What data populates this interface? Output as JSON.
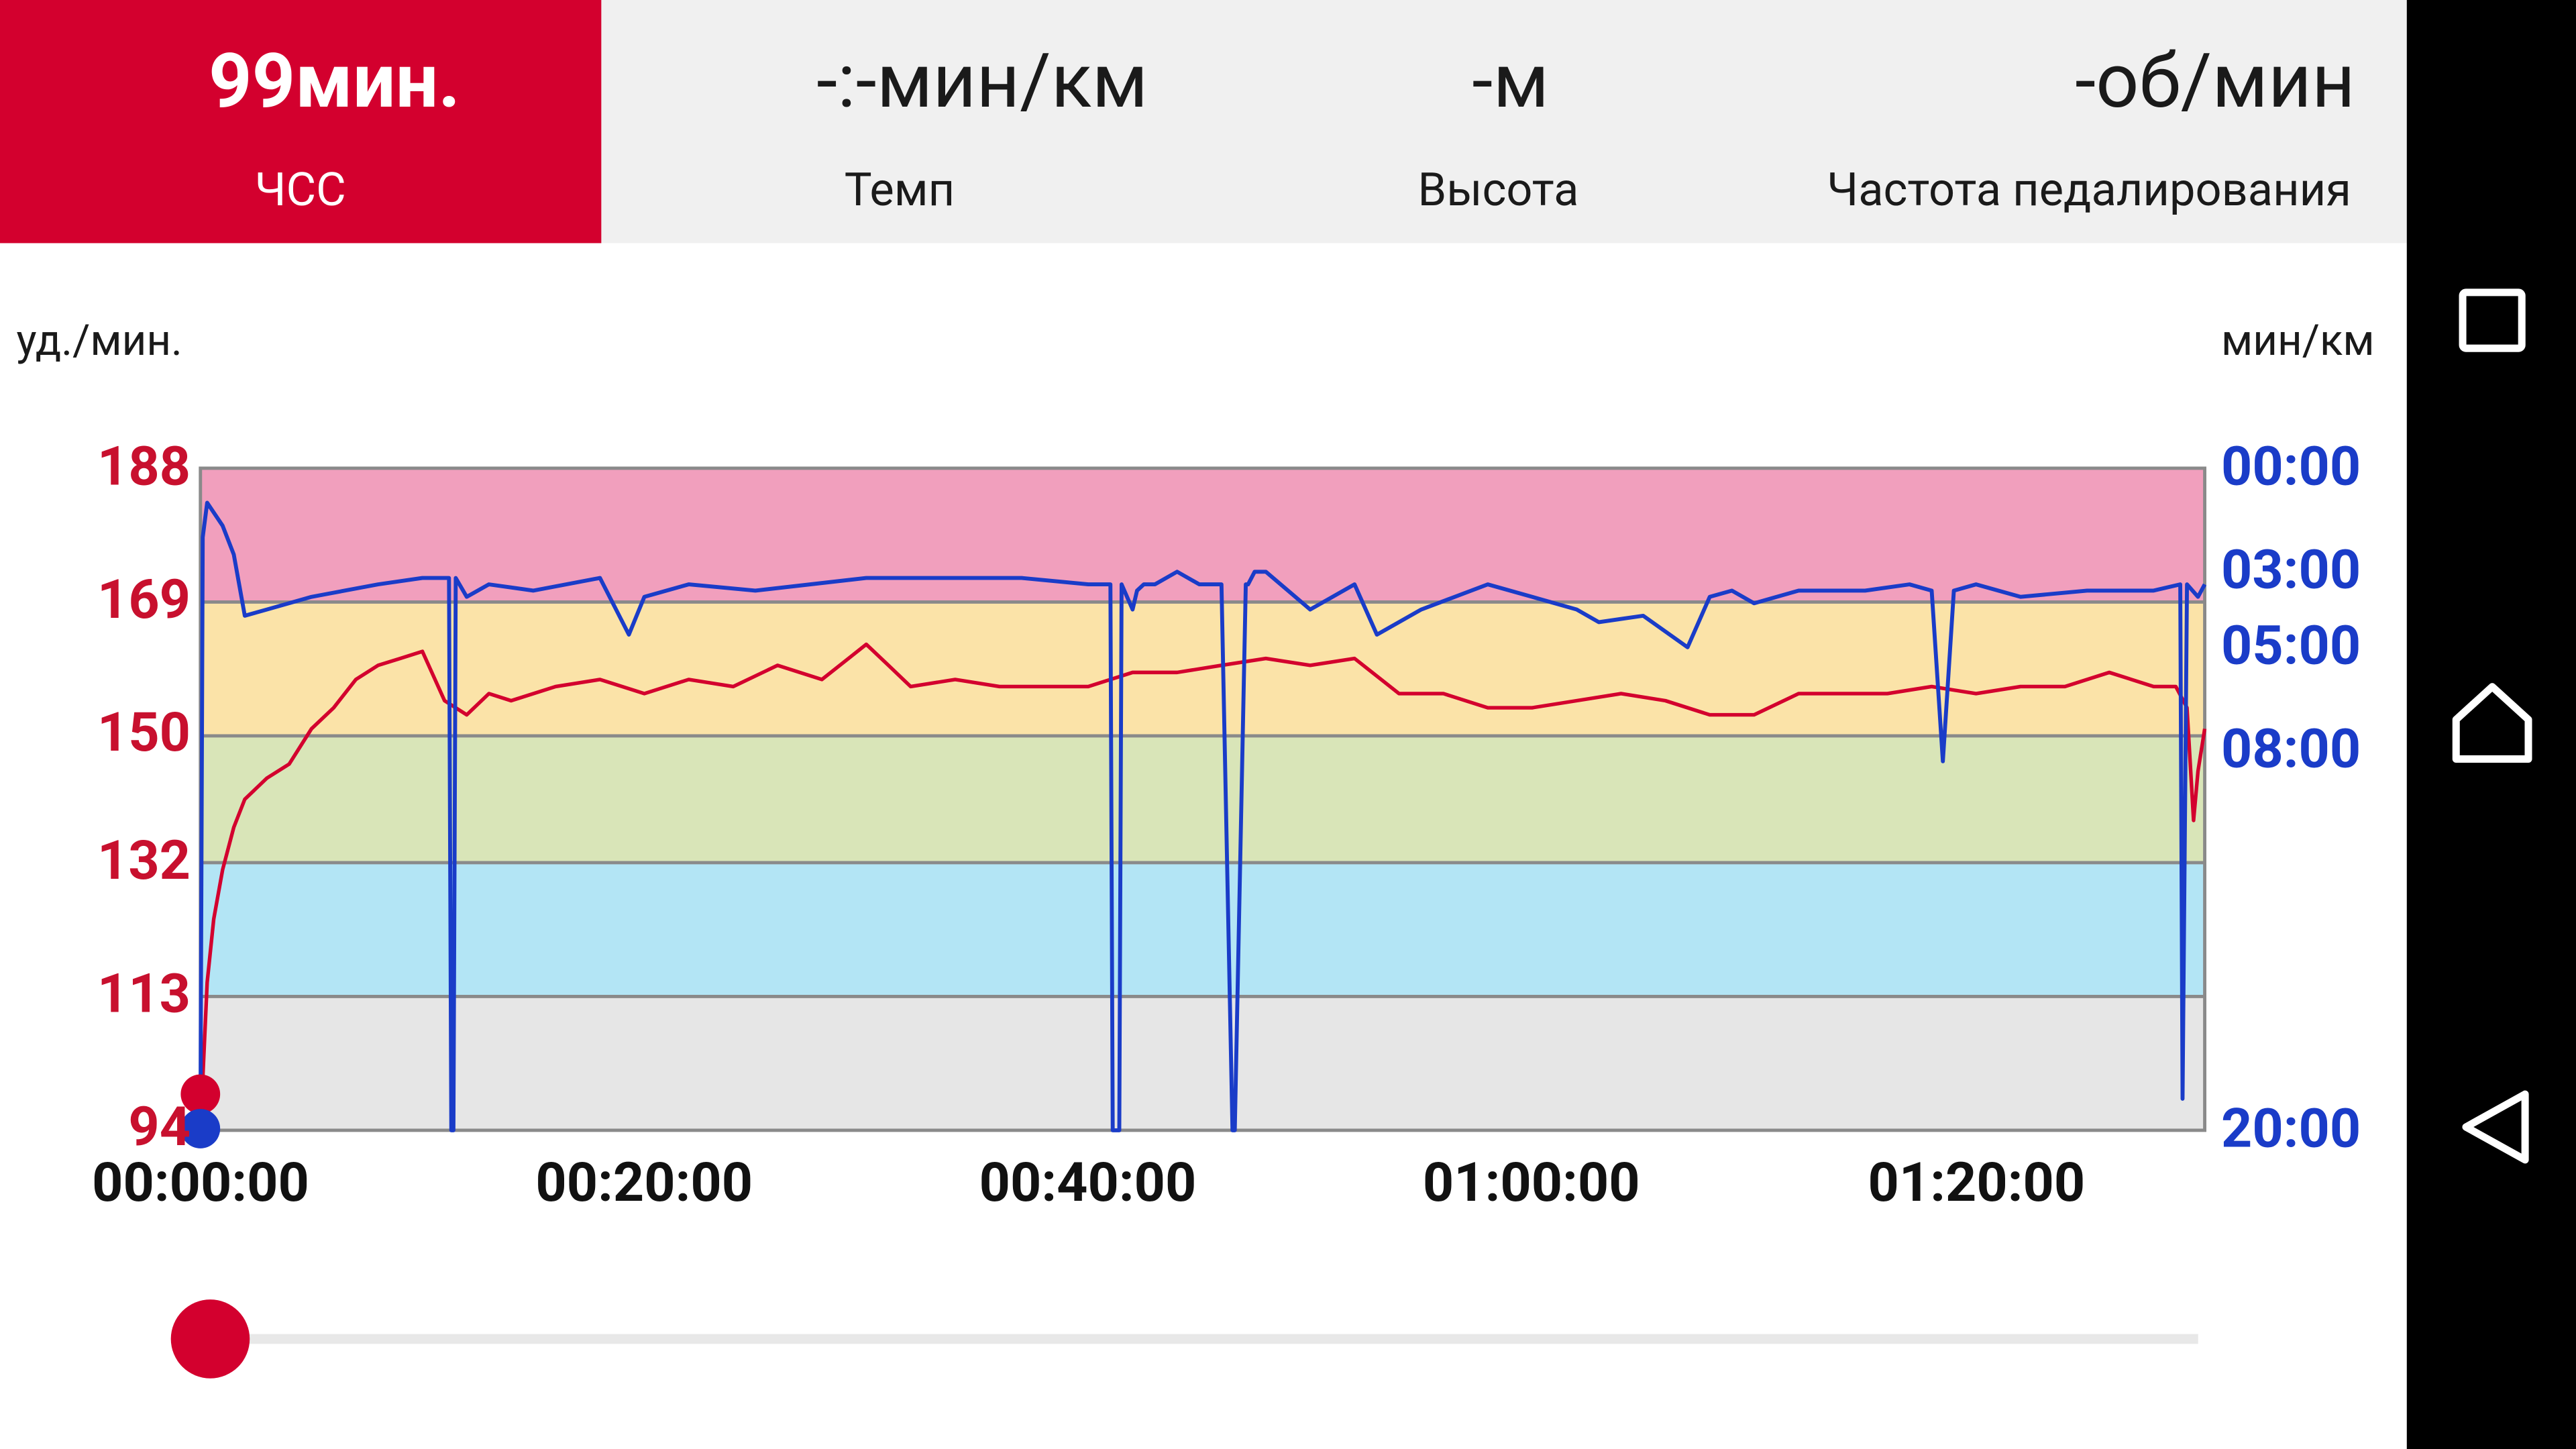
{
  "tabs": [
    {
      "value": "99мин.",
      "label": "ЧСС",
      "active": true
    },
    {
      "value": "-:-мин/км",
      "label": "Темп",
      "active": false
    },
    {
      "value": "-м",
      "label": "Высота",
      "active": false
    },
    {
      "value": "-об/мин",
      "label": "Частота педалирования",
      "active": false
    }
  ],
  "chart_data": {
    "type": "line",
    "left_axis_label": "уд./мин.",
    "right_axis_label": "мин/км",
    "left_ticks": [
      "188",
      "169",
      "150",
      "132",
      "113",
      "94"
    ],
    "right_ticks": [
      "00:00",
      "03:00",
      "05:00",
      "08:00",
      "20:00"
    ],
    "x_ticks": [
      "00:00:00",
      "00:20:00",
      "00:40:00",
      "01:00:00",
      "01:20:00"
    ],
    "x_range_minutes": [
      0,
      90.3
    ],
    "hr_ylim": [
      94,
      188
    ],
    "zones": [
      {
        "from": 94,
        "to": 113,
        "color": "#e6e6e6"
      },
      {
        "from": 113,
        "to": 132,
        "color": "#b3e5f5"
      },
      {
        "from": 132,
        "to": 150,
        "color": "#d9e5b8"
      },
      {
        "from": 150,
        "to": 169,
        "color": "#fbe3a8"
      },
      {
        "from": 169,
        "to": 188,
        "color": "#f19fbd"
      }
    ],
    "series": [
      {
        "key": "hr",
        "color": "#d3002e",
        "x": [
          0,
          0.3,
          0.6,
          1,
          1.5,
          2,
          3,
          4,
          5,
          6,
          7,
          8,
          9,
          10,
          11,
          12,
          13,
          14,
          16,
          18,
          20,
          22,
          24,
          26,
          28,
          30,
          31,
          32,
          34,
          36,
          38,
          40,
          42,
          44,
          46,
          48,
          50,
          52,
          54,
          56,
          58,
          60,
          62,
          64,
          66,
          68,
          70,
          72,
          74,
          76,
          78,
          80,
          82,
          84,
          86,
          88,
          89,
          89.5,
          89.8,
          90,
          90.3
        ],
        "y": [
          94,
          115,
          124,
          131,
          137,
          141,
          144,
          146,
          151,
          154,
          158,
          160,
          161,
          162,
          155,
          153,
          156,
          155,
          157,
          158,
          156,
          158,
          157,
          160,
          158,
          163,
          160,
          157,
          158,
          157,
          157,
          157,
          159,
          159,
          160,
          161,
          160,
          161,
          156,
          156,
          154,
          154,
          155,
          156,
          155,
          153,
          153,
          156,
          156,
          156,
          157,
          156,
          157,
          157,
          159,
          157,
          157,
          154,
          138,
          145,
          151
        ]
      },
      {
        "key": "pace",
        "color": "#1a3cc8",
        "x": [
          0,
          0.1,
          0.3,
          1,
          1.5,
          2,
          3,
          5,
          8,
          10,
          11.2,
          11.3,
          11.4,
          11.5,
          12,
          13,
          15,
          18,
          19.3,
          20,
          22,
          25,
          30,
          35,
          37,
          40,
          41,
          41.1,
          41.4,
          41.5,
          42,
          42.2,
          42.5,
          43,
          44,
          45,
          46,
          46.5,
          46.6,
          47.1,
          47.2,
          47.5,
          48,
          50,
          52,
          53,
          55,
          58,
          60,
          62,
          63,
          65,
          67,
          68,
          69,
          70,
          72,
          75,
          77,
          78,
          78.5,
          79,
          80,
          82,
          85,
          88,
          89.2,
          89.3,
          89.5,
          90,
          90.3
        ],
        "y": [
          1200,
          120,
          60,
          100,
          150,
          250,
          240,
          220,
          200,
          190,
          190,
          1200,
          1200,
          190,
          220,
          200,
          210,
          190,
          280,
          220,
          200,
          210,
          190,
          190,
          190,
          200,
          200,
          1200,
          1200,
          200,
          240,
          210,
          200,
          200,
          180,
          200,
          200,
          1200,
          1200,
          200,
          200,
          180,
          180,
          240,
          200,
          280,
          240,
          200,
          220,
          240,
          260,
          250,
          300,
          220,
          210,
          230,
          210,
          210,
          200,
          210,
          500,
          210,
          200,
          220,
          210,
          210,
          200,
          1140,
          200,
          220,
          200
        ]
      }
    ]
  },
  "slider": {
    "position_fraction": 0.0
  },
  "nav": {
    "icons": [
      "recents-icon",
      "home-icon",
      "back-icon"
    ]
  }
}
